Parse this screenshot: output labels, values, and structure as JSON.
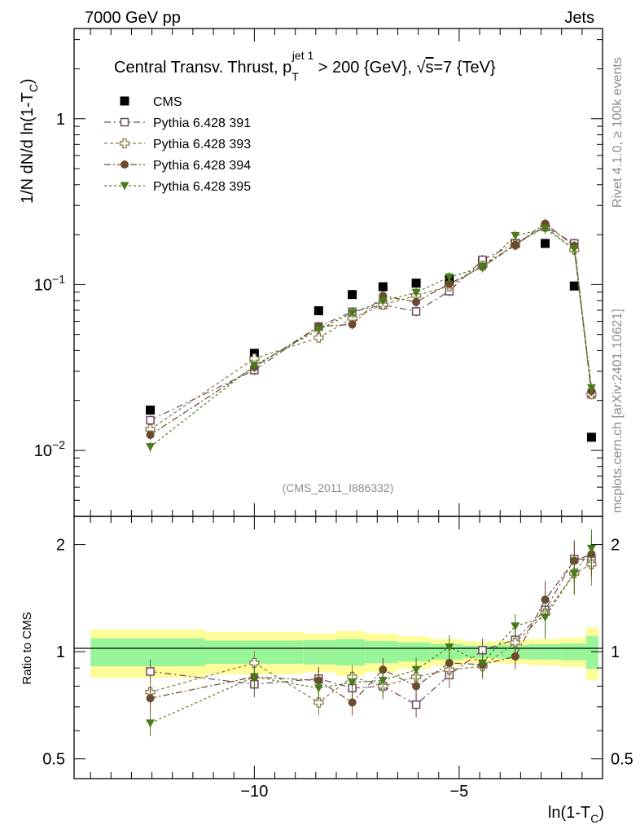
{
  "header": {
    "left": "7000 GeV pp",
    "right": "Jets"
  },
  "side_labels": {
    "rivet": "Rivet 4.1.0, ≥ 100k events",
    "mcplots": "mcplots.cern.ch [arXiv:2401.10621]"
  },
  "chart_data": [
    {
      "type": "scatter",
      "panel": "main",
      "title_parts": {
        "prefix": "Central Transv. Thrust, p",
        "sub": "T",
        "sup": "jet 1",
        "suffix": " > 200 {GeV}, ",
        "sqrt": "√",
        "s_label": "s",
        "energy": "=7 {TeV}"
      },
      "ylabel": "1/N    dN/d ln(1-T",
      "ylabel_sub": "C",
      "ylabel_close": ")",
      "yscale": "log",
      "ylim": [
        0.004,
        3.5
      ],
      "xlim": [
        -14.4,
        -1.5
      ],
      "ytick_labels": [
        {
          "value": 1,
          "base": "1",
          "exp": ""
        },
        {
          "value": 0.1,
          "base": "10",
          "exp": "−1"
        },
        {
          "value": 0.01,
          "base": "10",
          "exp": "−2"
        }
      ],
      "analysis_id": "(CMS_2011_I886332)",
      "x": [
        -12.54,
        -10.0,
        -8.43,
        -7.61,
        -6.86,
        -6.05,
        -5.24,
        -4.43,
        -3.63,
        -2.9,
        -2.19,
        -1.77
      ],
      "series": [
        {
          "name": "CMS",
          "marker": "square-filled",
          "color": "#000000",
          "dash": "",
          "values": [
            0.0175,
            0.0385,
            0.0695,
            0.087,
            0.097,
            0.102,
            0.107,
            0.139,
            0.177,
            0.177,
            0.098,
            0.012
          ]
        },
        {
          "name": "Pythia 6.428 391",
          "marker": "square-open",
          "color": "#6b4a5f",
          "dash": "8,4,2,4",
          "values": [
            0.0152,
            0.0305,
            0.0558,
            0.0685,
            0.0755,
            0.0688,
            0.0912,
            0.141,
            0.177,
            0.223,
            0.177,
            0.0218
          ]
        },
        {
          "name": "Pythia 6.428 393",
          "marker": "cross-open",
          "color": "#8a7a4a",
          "dash": "4,3",
          "values": [
            0.0134,
            0.0358,
            0.0478,
            0.0625,
            0.0755,
            0.0858,
            0.0978,
            0.13,
            0.174,
            0.223,
            0.162,
            0.0218
          ]
        },
        {
          "name": "Pythia 6.428 394",
          "marker": "circle-filled",
          "color": "#6b4a2e",
          "dash": "8,3,2,3",
          "values": [
            0.0124,
            0.0318,
            0.0558,
            0.0575,
            0.0855,
            0.0785,
            0.101,
            0.128,
            0.173,
            0.233,
            0.171,
            0.0228
          ]
        },
        {
          "name": "Pythia 6.428 395",
          "marker": "triangle-down-filled",
          "color": "#4a7a1a",
          "dash": "3,3",
          "values": [
            0.0105,
            0.0325,
            0.0535,
            0.0675,
            0.0795,
            0.0895,
            0.111,
            0.127,
            0.197,
            0.217,
            0.164,
            0.0238
          ]
        }
      ],
      "legend_position": "top-left"
    },
    {
      "type": "scatter",
      "panel": "ratio",
      "ylabel": "Ratio to CMS",
      "yscale": "log",
      "ylim": [
        0.44,
        2.4
      ],
      "xlim": [
        -14.4,
        -1.5
      ],
      "xlabel": "ln(1-T",
      "xlabel_sub": "C",
      "xlabel_close": ")",
      "xtick_labels": [
        {
          "value": -10,
          "label": "−10"
        },
        {
          "value": -5,
          "label": "−5"
        }
      ],
      "ytick_labels": [
        {
          "value": 2,
          "label": "2"
        },
        {
          "value": 1,
          "label": "1"
        },
        {
          "value": 0.5,
          "label": "0.5"
        }
      ],
      "reference_line": 1.0,
      "bands": {
        "edges": [
          -14.0,
          -11.2,
          -8.8,
          -8.0,
          -7.3,
          -6.5,
          -5.7,
          -4.9,
          -4.0,
          -3.3,
          -2.5,
          -1.9,
          -1.6
        ],
        "inner": [
          0.09,
          0.075,
          0.078,
          0.085,
          0.072,
          0.062,
          0.05,
          0.04,
          0.045,
          0.05,
          0.055,
          0.105
        ],
        "outer": [
          0.155,
          0.135,
          0.125,
          0.145,
          0.125,
          0.105,
          0.085,
          0.07,
          0.075,
          0.085,
          0.095,
          0.17
        ],
        "inner_color": "#99f599",
        "outer_color": "#fffd99"
      },
      "x": [
        -12.54,
        -10.0,
        -8.43,
        -7.61,
        -6.86,
        -6.05,
        -5.24,
        -4.43,
        -3.63,
        -2.9,
        -2.19,
        -1.77
      ],
      "series": [
        {
          "name": "Pythia 6.428 391",
          "marker": "square-open",
          "color": "#6b4a5f",
          "dash": "8,4,2,4",
          "values": [
            0.88,
            0.81,
            0.84,
            0.79,
            0.8,
            0.71,
            0.86,
            1.01,
            1.08,
            1.31,
            1.82,
            1.82
          ]
        },
        {
          "name": "Pythia 6.428 393",
          "marker": "cross-open",
          "color": "#8a7a4a",
          "dash": "4,3",
          "values": [
            0.77,
            0.93,
            0.72,
            0.85,
            0.8,
            0.85,
            0.89,
            0.91,
            1.06,
            1.28,
            1.66,
            1.76
          ]
        },
        {
          "name": "Pythia 6.428 394",
          "marker": "circle-filled",
          "color": "#6b4a2e",
          "dash": "8,3,2,3",
          "values": [
            0.74,
            0.85,
            0.83,
            0.72,
            0.89,
            0.8,
            0.93,
            0.92,
            0.97,
            1.4,
            1.8,
            1.88
          ]
        },
        {
          "name": "Pythia 6.428 395",
          "marker": "triangle-down-filled",
          "color": "#4a7a1a",
          "dash": "3,3",
          "values": [
            0.63,
            0.85,
            0.79,
            0.82,
            0.83,
            0.89,
            1.03,
            0.93,
            1.18,
            1.25,
            1.66,
            1.95
          ]
        }
      ]
    }
  ]
}
